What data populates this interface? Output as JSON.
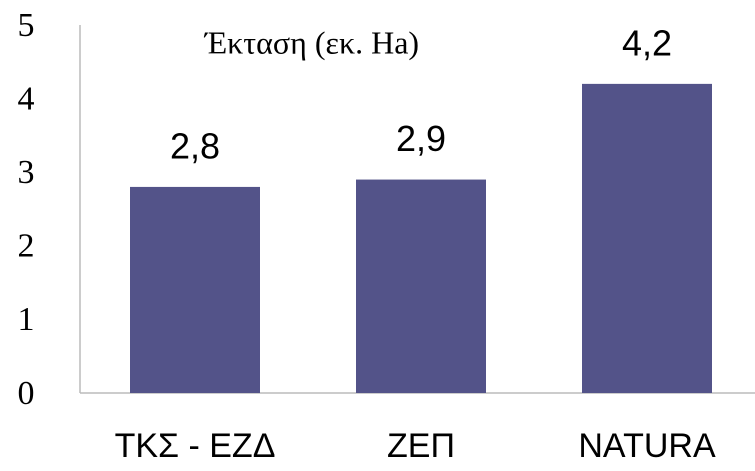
{
  "chart_data": {
    "type": "bar",
    "title": "Έκταση (εκ. Ha)",
    "categories": [
      "ΤΚΣ - ΕΖΔ",
      "ΖΕΠ",
      "NATURA"
    ],
    "values": [
      2.8,
      2.9,
      4.2
    ],
    "value_labels": [
      "2,8",
      "2,9",
      "4,2"
    ],
    "color": "#535389",
    "ylim": [
      0,
      5
    ],
    "yticks": [
      0,
      1,
      2,
      3,
      4,
      5
    ],
    "grid": false
  }
}
